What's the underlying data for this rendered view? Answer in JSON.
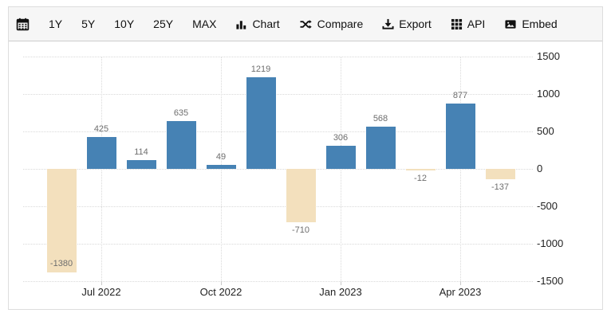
{
  "toolbar": {
    "items": [
      {
        "icon": "calendar-icon",
        "label": ""
      },
      {
        "icon": null,
        "label": "1Y"
      },
      {
        "icon": null,
        "label": "5Y"
      },
      {
        "icon": null,
        "label": "10Y"
      },
      {
        "icon": null,
        "label": "25Y"
      },
      {
        "icon": null,
        "label": "MAX"
      },
      {
        "icon": "bar-chart-icon",
        "label": "Chart"
      },
      {
        "icon": "compare-shuffle-icon",
        "label": "Compare"
      },
      {
        "icon": "export-download-icon",
        "label": "Export"
      },
      {
        "icon": "api-grid-icon",
        "label": "API"
      },
      {
        "icon": "embed-image-icon",
        "label": "Embed"
      }
    ]
  },
  "chart_data": {
    "type": "bar",
    "values": [
      -1380,
      425,
      114,
      635,
      49,
      1219,
      -710,
      306,
      568,
      -12,
      877,
      -137
    ],
    "bar_labels": [
      "-1380",
      "425",
      "114",
      "635",
      "49",
      "1219",
      "-710",
      "306",
      "568",
      "-12",
      "877",
      "-137"
    ],
    "x_tick_labels": [
      "Jul 2022",
      "Oct 2022",
      "Jan 2023",
      "Apr 2023"
    ],
    "x_tick_bar_index": [
      1,
      4,
      7,
      10
    ],
    "y_ticks": [
      1500,
      1000,
      500,
      0,
      -500,
      -1000,
      -1500
    ],
    "ylim": [
      -1500,
      1500
    ],
    "y_axis_position": "right",
    "grid": "dotted",
    "positive_color": "#4682B4",
    "negative_color": "#F3E0BD",
    "label_color": "#6e6e6e"
  }
}
